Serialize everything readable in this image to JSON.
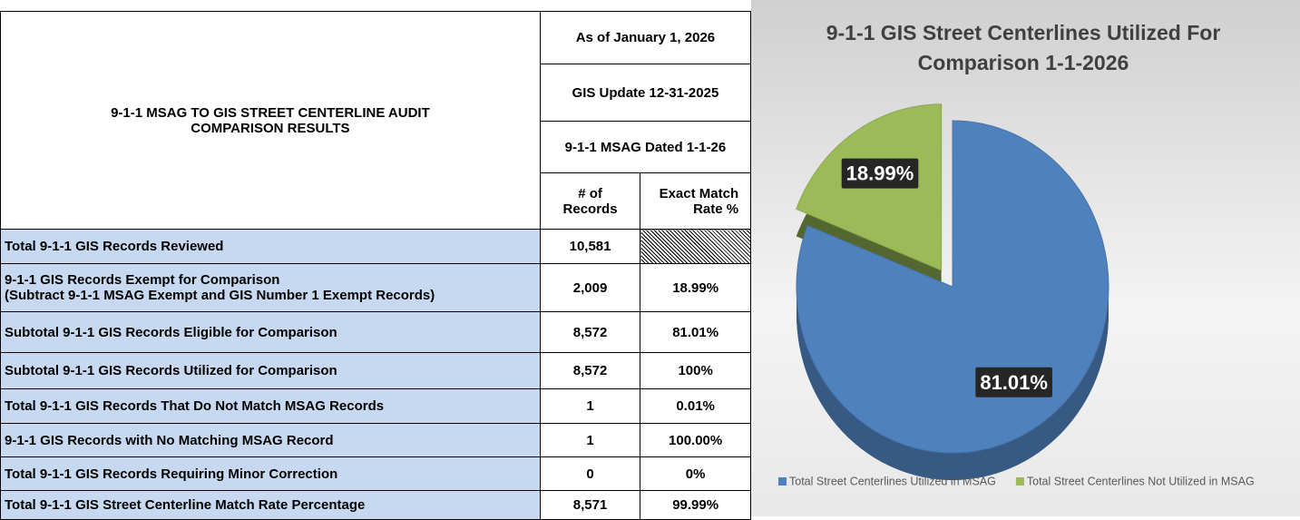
{
  "table": {
    "title": "9-1-1 MSAG TO GIS STREET CENTERLINE AUDIT COMPARISON RESULTS",
    "header": [
      "As of January 1, 2026",
      "GIS Update 12-31-2025",
      "9-1-1 MSAG Dated 1-1-26"
    ],
    "columns": [
      "# of Records",
      "Exact Match Rate %"
    ],
    "rows": [
      {
        "label": [
          "Total 9-1-1 GIS Records Reviewed"
        ],
        "records": "10,581"
      },
      {
        "label": [
          "9-1-1 GIS Records Exempt for Comparison",
          "(Subtract 9-1-1 MSAG Exempt and GIS Number 1 Exempt Records)"
        ],
        "records": "2,009",
        "rate": "18.99%"
      },
      {
        "label": [
          "Subtotal 9-1-1 GIS Records Eligible for Comparison"
        ],
        "records": "8,572",
        "rate": "81.01%"
      },
      {
        "label": [
          "Subtotal 9-1-1 GIS Records Utilized for Comparison"
        ],
        "records": "8,572",
        "rate": "100%"
      },
      {
        "label": [
          "Total 9-1-1 GIS Records That Do Not Match MSAG Records"
        ],
        "records": "1",
        "rate": "0.01%"
      },
      {
        "label": [
          "9-1-1 GIS Records with No Matching MSAG Record"
        ],
        "records": "1",
        "rate": "100.00%"
      },
      {
        "label": [
          "Total 9-1-1 GIS Records Requiring Minor Correction"
        ],
        "records": "0",
        "rate": "0%"
      },
      {
        "label": [
          "Total 9-1-1 GIS Street Centerline Match Rate Percentage"
        ],
        "records": "8,571",
        "rate": "99.99%"
      }
    ]
  },
  "chart_data": {
    "type": "pie",
    "title": "9-1-1 GIS Street Centerlines Utilized For Comparison 1-1-2026",
    "categories": [
      "Total Street Centerlines Utilized in MSAG",
      "Total Street Centerlines Not Utilized in MSAG"
    ],
    "values": [
      81.01,
      18.99
    ],
    "value_labels": [
      "81.01%",
      "18.99%"
    ],
    "colors": [
      "#4f81bd",
      "#9bbb59"
    ],
    "exploded": [
      false,
      true
    ]
  }
}
